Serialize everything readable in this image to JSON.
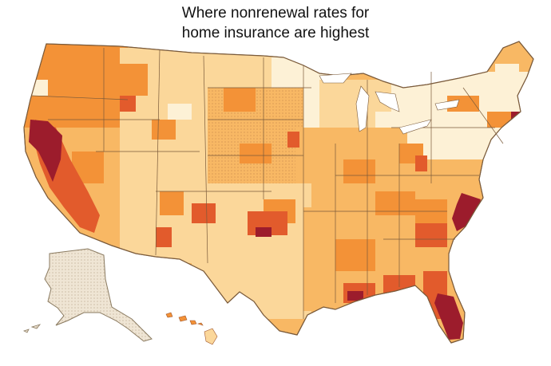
{
  "title": {
    "line1": "Where nonrenewal rates for",
    "line2": "home insurance are highest"
  },
  "colors": {
    "lightest": "#fdf1d6",
    "light": "#fbd79a",
    "medium_light": "#f8b864",
    "medium": "#f39237",
    "high": "#e25b2c",
    "highest": "#9c1c2c",
    "no_data": "#efe5d4",
    "border": "#ffffff",
    "state_border": "#7a5a3a"
  },
  "map": {
    "regions": [
      "United States",
      "Alaska",
      "Hawaii"
    ]
  }
}
